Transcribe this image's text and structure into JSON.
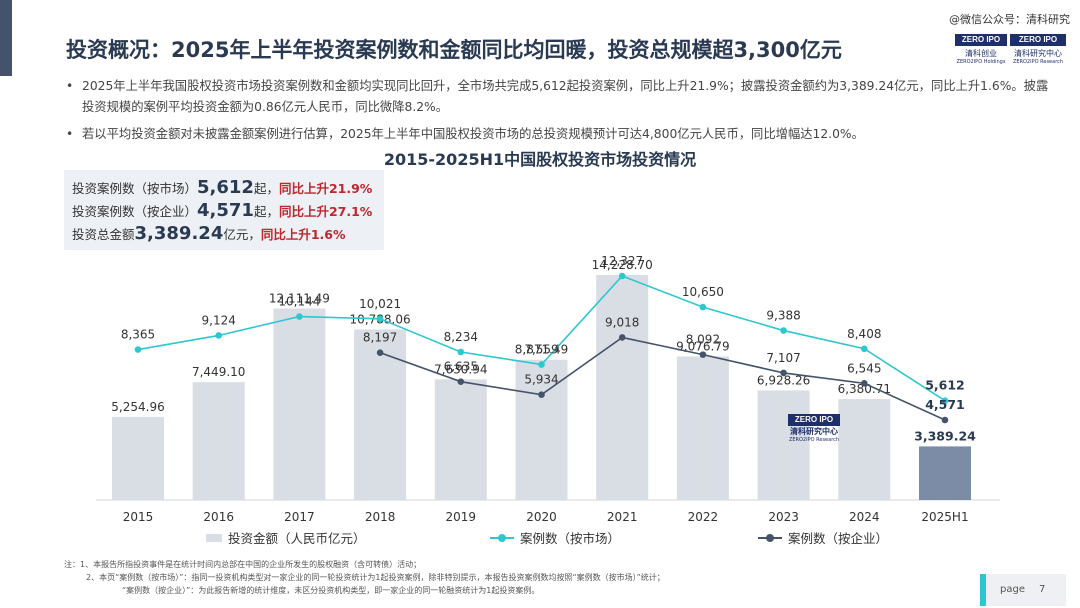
{
  "header": {
    "title": "投资概况：2025年上半年投资案例数和金额同比均回暖，投资总规模超3,300亿元",
    "watermark": "@微信公众号：清科研究",
    "logos": [
      {
        "box": "ZERO IPO",
        "cn": "清科创业",
        "en": "ZERO2IPO Holdings"
      },
      {
        "box": "ZERO IPO",
        "cn": "清科研究中心",
        "en": "ZERO2IPO Research"
      }
    ]
  },
  "bullets": [
    "2025年上半年我国股权投资市场投资案例数和金额均实现同比回升，全市场共完成5,612起投资案例，同比上升21.9%；披露投资金额约为3,389.24亿元，同比上升1.6%。披露投资规模的案例平均投资金额为0.86亿元人民币，同比微降8.2%。",
    "若以平均投资金额对未披露金额案例进行估算，2025年上半年中国股权投资市场的总投资规模预计可达4,800亿元人民币，同比增幅达12.0%。"
  ],
  "stats": [
    {
      "label": "投资案例数（按市场）",
      "value": "5,612",
      "unit": "起，",
      "change": "同比上升21.9%"
    },
    {
      "label": "投资案例数（按企业）",
      "value": "4,571",
      "unit": "起，",
      "change": "同比上升27.1%"
    },
    {
      "label": "投资总金额",
      "value": "3,389.24",
      "unit": "亿元，",
      "change": "同比上升1.6%"
    }
  ],
  "mid_logo": {
    "box": "ZERO IPO",
    "cn": "清科研究中心",
    "en": "ZERO2IPO Research"
  },
  "notes": [
    "注：1、本报告所指投资事件是在统计时间内总部在中国的企业所发生的股权融资（含可转债）活动；",
    "2、本页“案例数（按市场）”：指同一投资机构类型对一家企业的同一轮投资统计为1起投资案例，除非特别提示，本报告投资案例数均按照“案例数（按市场）”统计；",
    "“案例数（按企业）”：为此报告新增的统计维度，未区分投资机构类型，即一家企业的同一轮融资统计为1起投资案例。"
  ],
  "footer": {
    "page_label": "page",
    "page_number": "7"
  },
  "colors": {
    "bar": "#d9dde4",
    "bar_highlight": "#7c8ca6",
    "line_market": "#2ec6cf",
    "line_company": "#45536b",
    "title": "#2a3a52",
    "change": "#c0262d"
  },
  "chart_data": {
    "type": "bar",
    "title": "2015-2025H1中国股权投资市场投资情况",
    "categories": [
      "2015",
      "2016",
      "2017",
      "2018",
      "2019",
      "2020",
      "2021",
      "2022",
      "2023",
      "2024",
      "2025H1"
    ],
    "series": [
      {
        "name": "投资金额（人民币亿元）",
        "type": "bar",
        "values": [
          5254.96,
          7449.1,
          12111.49,
          10788.06,
          7630.94,
          8871.49,
          14228.7,
          9076.79,
          6928.26,
          6380.71,
          3389.24
        ],
        "labels": [
          "5,254.96",
          "7,449.10",
          "12,111.49",
          "10,788.06",
          "7,630.94",
          "8,871.49",
          "14,228.70",
          "9,076.79",
          "6,928.26",
          "6,380.71",
          "3,389.24"
        ]
      },
      {
        "name": "案例数（按市场）",
        "type": "line",
        "values": [
          8365,
          9124,
          10144,
          10021,
          8234,
          7559,
          12327,
          10650,
          9388,
          8408,
          5612
        ],
        "labels": [
          "8,365",
          "9,124",
          "10,144",
          "10,021",
          "8,234",
          "7,559",
          "12,327",
          "10,650",
          "9,388",
          "8,408",
          "5,612"
        ]
      },
      {
        "name": "案例数（按企业）",
        "type": "line",
        "values": [
          null,
          null,
          null,
          8197,
          6635,
          5934,
          9018,
          8092,
          7107,
          6545,
          4571
        ],
        "labels": [
          "",
          "",
          "",
          "8,197",
          "6,635",
          "5,934",
          "9,018",
          "8,092",
          "7,107",
          "6,545",
          "4,571"
        ]
      }
    ],
    "legend_position": "bottom",
    "grid": false
  }
}
